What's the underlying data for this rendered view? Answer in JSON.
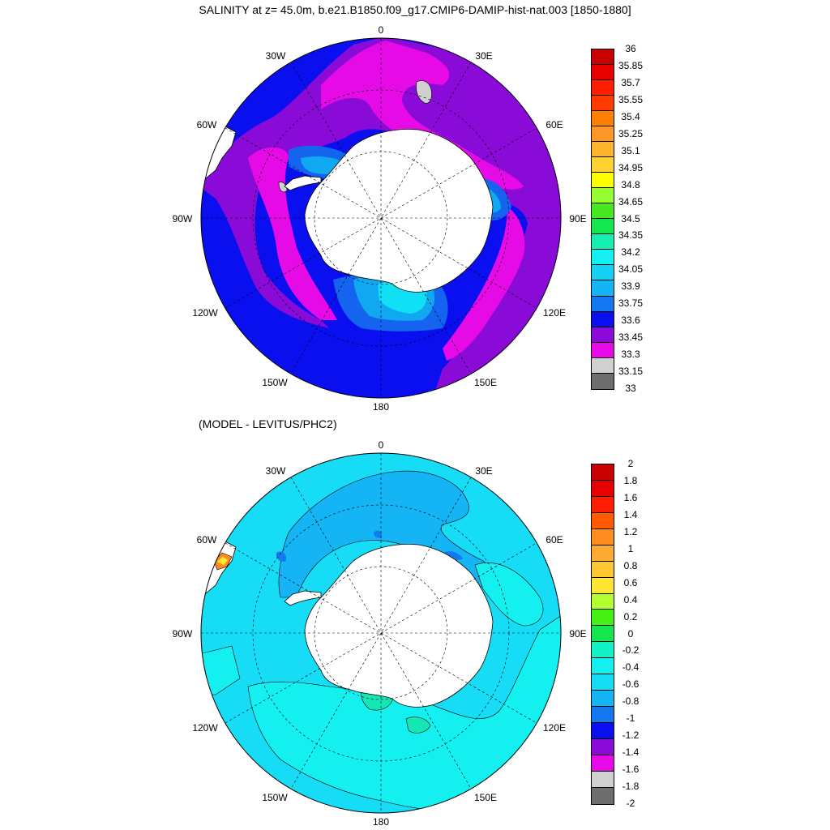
{
  "title": "SALINITY at z=  45.0m, b.e21.B1850.f09_g17.CMIP6-DAMIP-hist-nat.003 [1850-1880]",
  "subtitle": "(MODEL - LEVITUS/PHC2)",
  "longitude_labels": [
    "0",
    "30E",
    "60E",
    "90E",
    "120E",
    "150E",
    "180",
    "150W",
    "120W",
    "90W",
    "60W",
    "30W"
  ],
  "colors": {
    "land": "#ffffff",
    "coast": "#000000",
    "grid": "#000000"
  },
  "maps": [
    {
      "name": "salinity",
      "background_color": "#0a0ff0",
      "features": [
        {
          "name": "purple-band",
          "color": "#8a0ad8"
        },
        {
          "name": "magenta-core",
          "color": "#e60ae6"
        },
        {
          "name": "shelf-blue",
          "color": "#1464f0"
        },
        {
          "name": "shelf-lightblue",
          "color": "#10a8f0"
        },
        {
          "name": "shelf-cyan",
          "color": "#10e0f5"
        },
        {
          "name": "shelf-green",
          "color": "#10d850"
        },
        {
          "name": "low-salinity-grey",
          "color": "#d0d0d0"
        }
      ],
      "colorbar": {
        "labels": [
          "36",
          "35.85",
          "35.7",
          "35.55",
          "35.4",
          "35.25",
          "35.1",
          "34.95",
          "34.8",
          "34.65",
          "34.5",
          "34.35",
          "34.2",
          "34.05",
          "33.9",
          "33.75",
          "33.6",
          "33.45",
          "33.3",
          "33.15",
          "33"
        ],
        "colors": [
          "#c80000",
          "#e60000",
          "#ff1e00",
          "#ff3c00",
          "#ff8000",
          "#ff9628",
          "#ffb430",
          "#ffd232",
          "#ffff00",
          "#96ff32",
          "#46e620",
          "#14e650",
          "#14f0b4",
          "#14f0f0",
          "#14d2f5",
          "#14b4f5",
          "#1478f0",
          "#0a0ff0",
          "#8a0ad8",
          "#e60ae6",
          "#d0d0d0",
          "#6e6e6e"
        ]
      }
    },
    {
      "name": "difference",
      "background_color": "#16dcf5",
      "features": [
        {
          "name": "atlantic-blue-band",
          "color": "#14b4f5"
        },
        {
          "name": "cyan-belt",
          "color": "#14f0f0"
        },
        {
          "name": "green-spot",
          "color": "#14e6b4"
        },
        {
          "name": "deep-blue-patches",
          "color": "#1478f0"
        },
        {
          "name": "warm-anomaly",
          "color": "#ff8c1e"
        }
      ],
      "colorbar": {
        "labels": [
          "2",
          "1.8",
          "1.6",
          "1.4",
          "1.2",
          "1",
          "0.8",
          "0.6",
          "0.4",
          "0.2",
          "0",
          "-0.2",
          "-0.4",
          "-0.6",
          "-0.8",
          "-1",
          "-1.2",
          "-1.4",
          "-1.6",
          "-1.8",
          "-2"
        ],
        "colors": [
          "#c80000",
          "#e60000",
          "#ff1e00",
          "#ff5a00",
          "#ff8c1e",
          "#ffaa32",
          "#ffc832",
          "#ffe632",
          "#b4ff32",
          "#46f014",
          "#14e650",
          "#14f0c8",
          "#14f0f0",
          "#16dcf5",
          "#14b4f5",
          "#1478f0",
          "#0a0ff0",
          "#8a0ad8",
          "#e60ae6",
          "#d0d0d0",
          "#6e6e6e"
        ]
      }
    }
  ]
}
